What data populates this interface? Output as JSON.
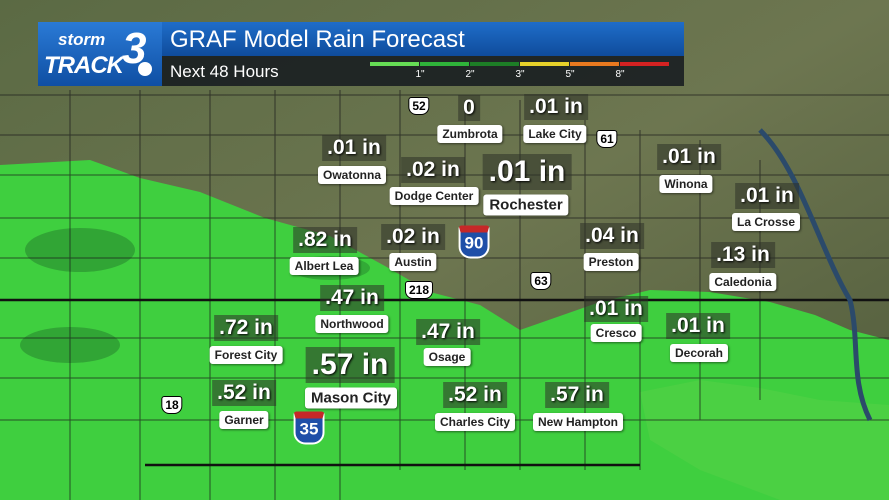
{
  "header": {
    "logo": {
      "top": "storm",
      "bottom": "TRACK",
      "number": "3"
    },
    "title": "GRAF Model Rain Forecast",
    "subtitle": "Next 48 Hours"
  },
  "legend": {
    "labels": [
      "1\"",
      "2\"",
      "3\"",
      "5\"",
      "8\""
    ],
    "colors": [
      "#66dd55",
      "#2fb33a",
      "#1d7d26",
      "#e6d12a",
      "#e8791f",
      "#d42222"
    ]
  },
  "places": [
    {
      "amount": "0",
      "name": "Zumbrota"
    },
    {
      "amount": ".01 in",
      "name": "Lake City"
    },
    {
      "amount": ".01 in",
      "name": "Owatonna"
    },
    {
      "amount": ".02 in",
      "name": "Dodge Center"
    },
    {
      "amount": ".01 in",
      "name": "Rochester"
    },
    {
      "amount": ".01 in",
      "name": "Winona"
    },
    {
      "amount": ".01 in",
      "name": "La Crosse"
    },
    {
      "amount": ".82 in",
      "name": "Albert Lea"
    },
    {
      "amount": ".02 in",
      "name": "Austin"
    },
    {
      "amount": ".04 in",
      "name": "Preston"
    },
    {
      "amount": ".13 in",
      "name": "Caledonia"
    },
    {
      "amount": ".47 in",
      "name": "Northwood"
    },
    {
      "amount": ".47 in",
      "name": "Osage"
    },
    {
      "amount": ".01 in",
      "name": "Cresco"
    },
    {
      "amount": ".01 in",
      "name": "Decorah"
    },
    {
      "amount": ".72 in",
      "name": "Forest City"
    },
    {
      "amount": ".57 in",
      "name": "Mason City"
    },
    {
      "amount": ".52 in",
      "name": "Garner"
    },
    {
      "amount": ".52 in",
      "name": "Charles City"
    },
    {
      "amount": ".57 in",
      "name": "New Hampton"
    }
  ],
  "shields": [
    {
      "type": "us",
      "label": "52"
    },
    {
      "type": "us",
      "label": "61"
    },
    {
      "type": "interstate",
      "label": "90"
    },
    {
      "type": "us",
      "label": "218"
    },
    {
      "type": "us",
      "label": "63"
    },
    {
      "type": "us",
      "label": "18"
    },
    {
      "type": "interstate",
      "label": "35"
    }
  ]
}
